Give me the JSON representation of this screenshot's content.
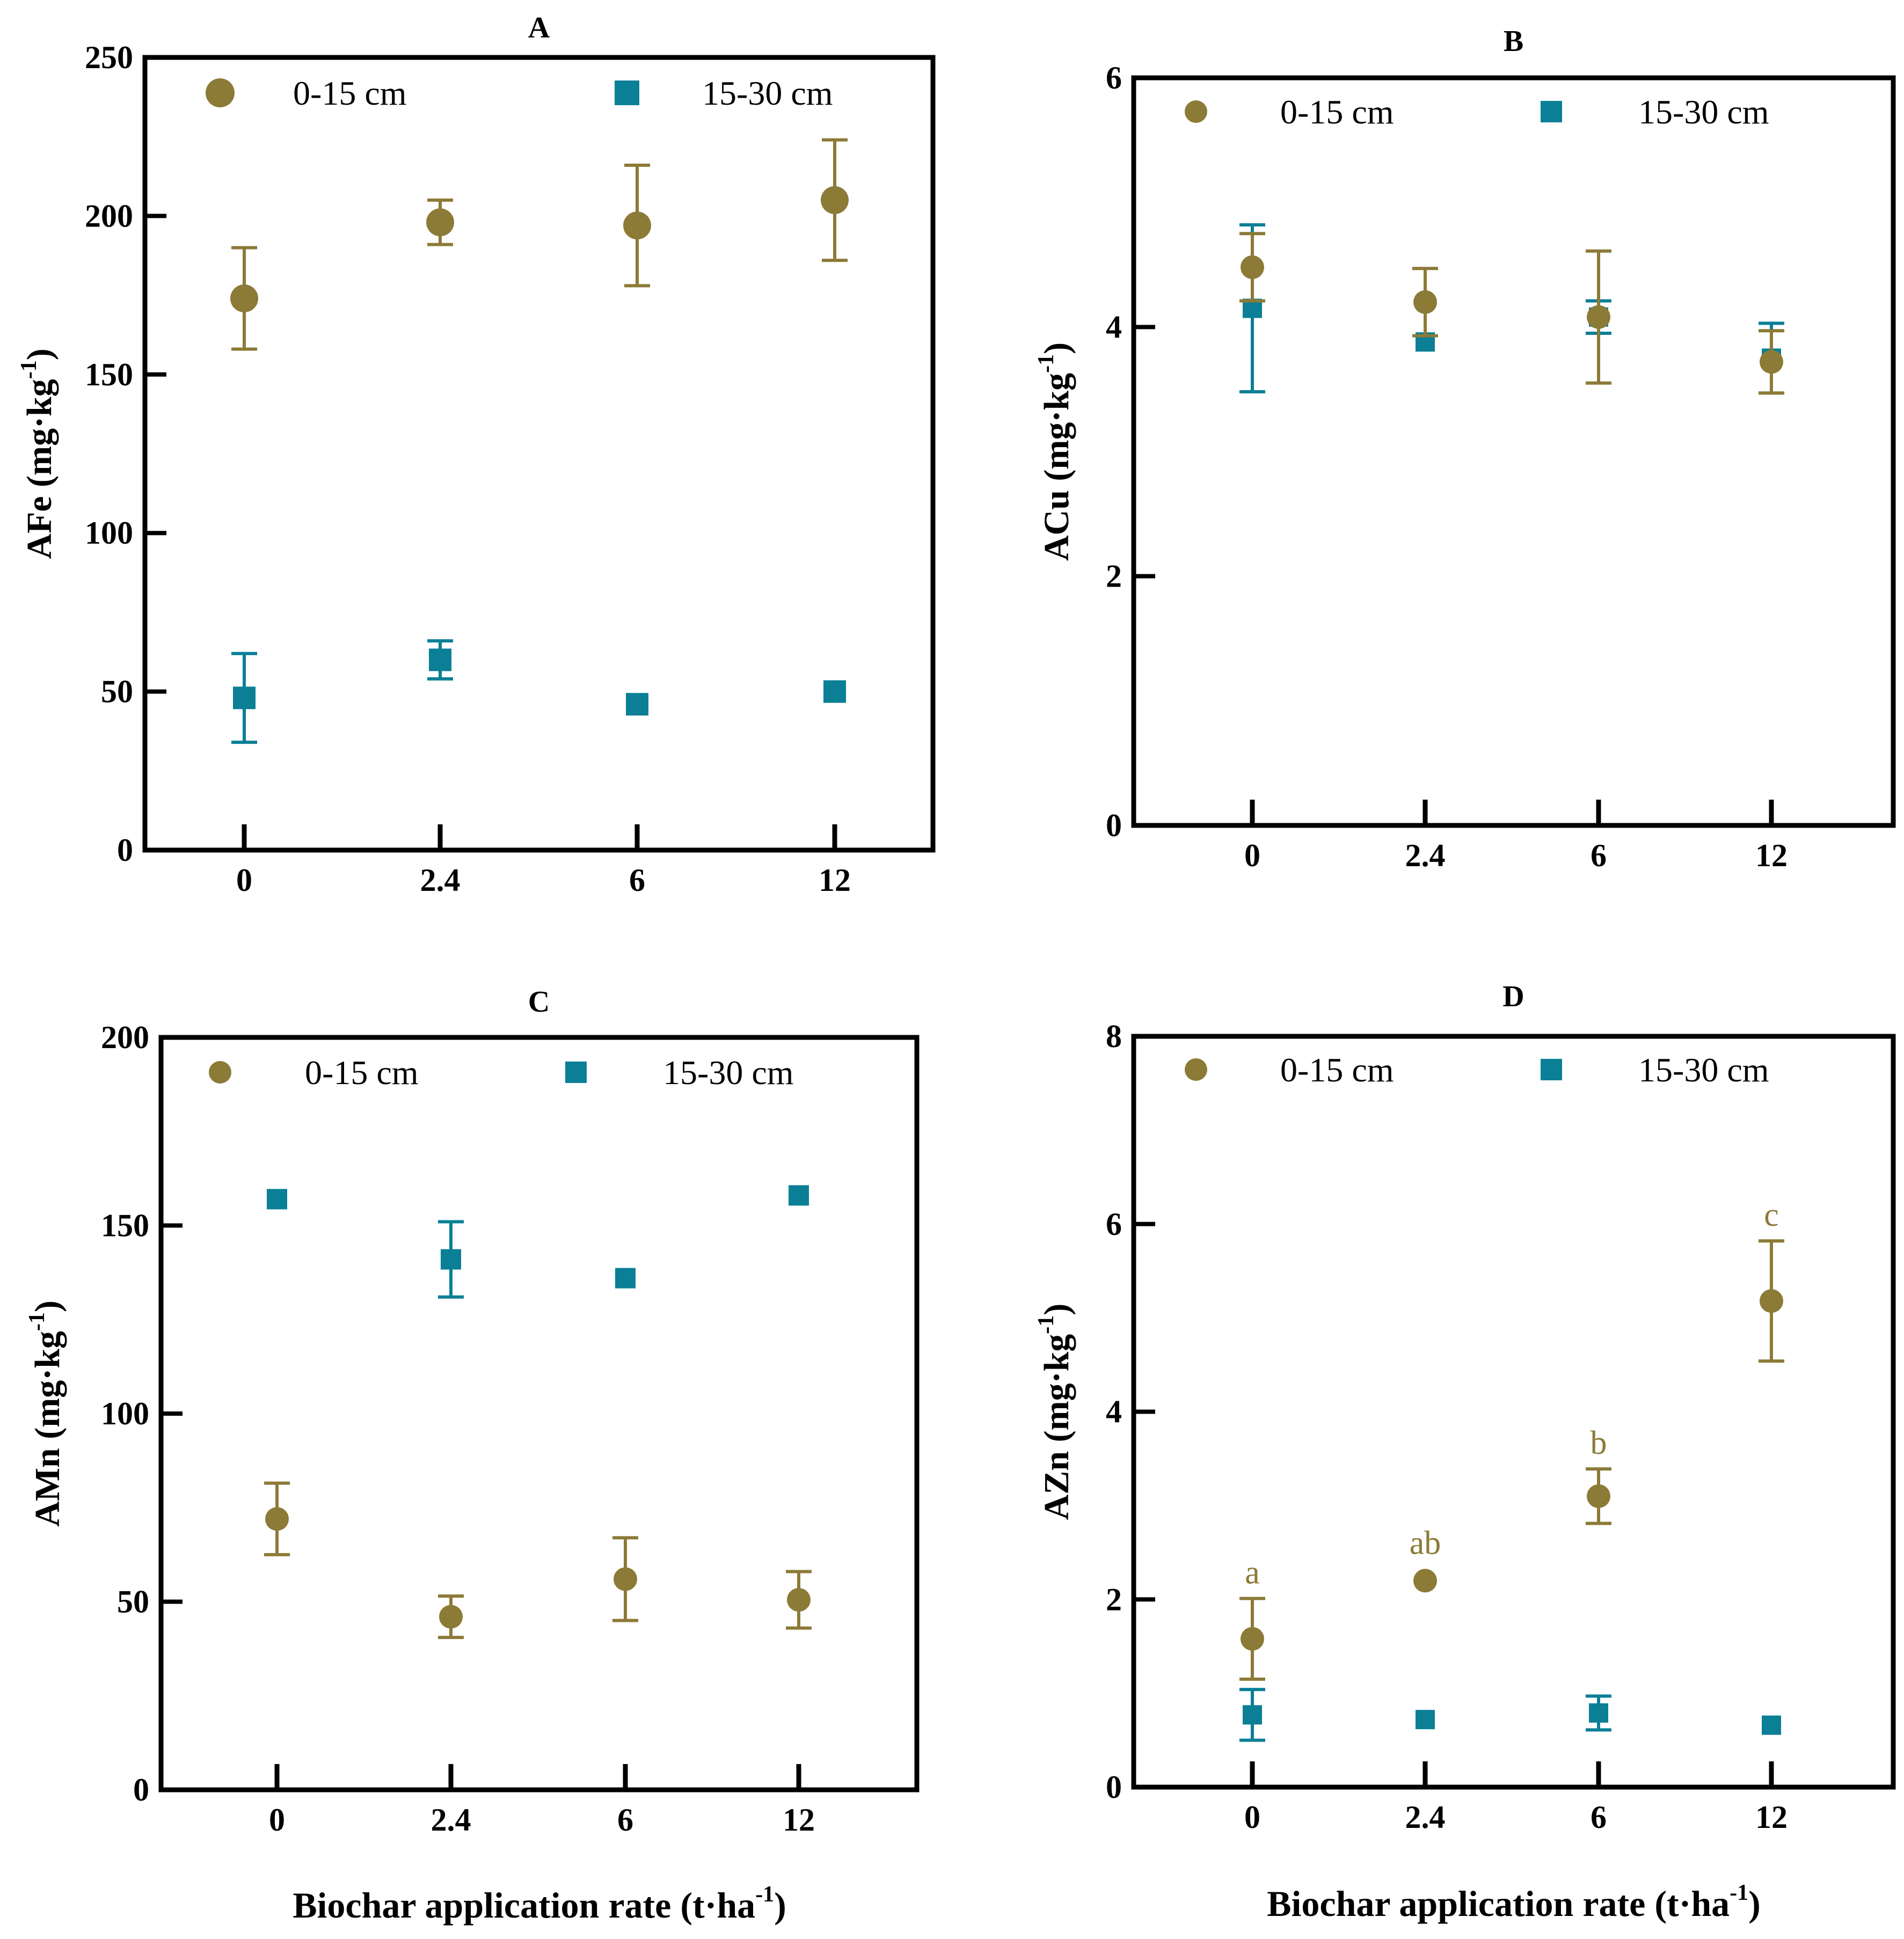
{
  "figure": {
    "x_axis_title": "Biochar application rate (t·ha",
    "x_axis_title_sup": "-1",
    "x_axis_title_end": ")"
  },
  "colors": {
    "series_0_15": "#8C7A37",
    "series_15_30": "#0A7F96",
    "axis": "#000000"
  },
  "chart_data": [
    {
      "id": "A",
      "type": "scatter",
      "title": "A",
      "ylabel": "AFe (mg·kg",
      "ylabel_sup": "-1",
      "ylabel_end": ")",
      "categories": [
        "0",
        "2.4",
        "6",
        "12"
      ],
      "ylim": [
        0,
        250
      ],
      "yticks": [
        "0",
        "50",
        "100",
        "150",
        "200",
        "250"
      ],
      "legend": [
        "0-15 cm",
        "15-30 cm"
      ],
      "series": [
        {
          "name": "0-15 cm",
          "marker": "circle",
          "values": [
            174,
            198,
            197,
            205
          ],
          "errors": [
            16,
            7,
            19,
            19
          ],
          "labels": []
        },
        {
          "name": "15-30 cm",
          "marker": "square",
          "values": [
            48,
            60,
            46,
            50
          ],
          "errors": [
            14,
            6,
            0,
            0
          ],
          "labels": []
        }
      ]
    },
    {
      "id": "B",
      "type": "scatter",
      "title": "B",
      "ylabel": "ACu (mg·kg",
      "ylabel_sup": "-1",
      "ylabel_end": ")",
      "categories": [
        "0",
        "2.4",
        "6",
        "12"
      ],
      "ylim": [
        0,
        6
      ],
      "yticks": [
        "0",
        "2",
        "4",
        "6"
      ],
      "legend": [
        "0-15 cm",
        "15-30 cm"
      ],
      "series": [
        {
          "name": "0-15 cm",
          "marker": "circle",
          "values": [
            4.48,
            4.2,
            4.08,
            3.72
          ],
          "errors": [
            0.27,
            0.27,
            0.53,
            0.25
          ],
          "labels": []
        },
        {
          "name": "15-30 cm",
          "marker": "square",
          "values": [
            4.15,
            3.88,
            4.08,
            3.75
          ],
          "errors": [
            0.67,
            0.0,
            0.13,
            0.28
          ],
          "labels": []
        }
      ]
    },
    {
      "id": "C",
      "type": "scatter",
      "title": "C",
      "ylabel": "AMn (mg·kg",
      "ylabel_sup": "-1",
      "ylabel_end": ")",
      "categories": [
        "0",
        "2.4",
        "6",
        "12"
      ],
      "ylim": [
        0,
        200
      ],
      "yticks": [
        "0",
        "50",
        "100",
        "150",
        "200"
      ],
      "legend": [
        "0-15 cm",
        "15-30 cm"
      ],
      "series": [
        {
          "name": "0-15 cm",
          "marker": "circle",
          "values": [
            72,
            46,
            56,
            50.5
          ],
          "errors": [
            9.5,
            5.5,
            11,
            7.5
          ],
          "labels": []
        },
        {
          "name": "15-30 cm",
          "marker": "square",
          "values": [
            157,
            141,
            136,
            158
          ],
          "errors": [
            0,
            10,
            0,
            0
          ],
          "labels": []
        }
      ]
    },
    {
      "id": "D",
      "type": "scatter",
      "title": "D",
      "ylabel": "AZn (mg·kg",
      "ylabel_sup": "-1",
      "ylabel_end": ")",
      "categories": [
        "0",
        "2.4",
        "6",
        "12"
      ],
      "ylim": [
        0,
        8
      ],
      "yticks": [
        "0",
        "2",
        "4",
        "6",
        "8"
      ],
      "legend": [
        "0-15 cm",
        "15-30 cm"
      ],
      "series": [
        {
          "name": "0-15 cm",
          "marker": "circle",
          "values": [
            1.58,
            2.2,
            3.1,
            5.18
          ],
          "errors": [
            0.43,
            0.0,
            0.29,
            0.64
          ],
          "labels": [
            "a",
            "ab",
            "b",
            "c"
          ]
        },
        {
          "name": "15-30 cm",
          "marker": "square",
          "values": [
            0.77,
            0.72,
            0.79,
            0.66
          ],
          "errors": [
            0.27,
            0.0,
            0.18,
            0.0
          ],
          "labels": []
        }
      ]
    }
  ]
}
